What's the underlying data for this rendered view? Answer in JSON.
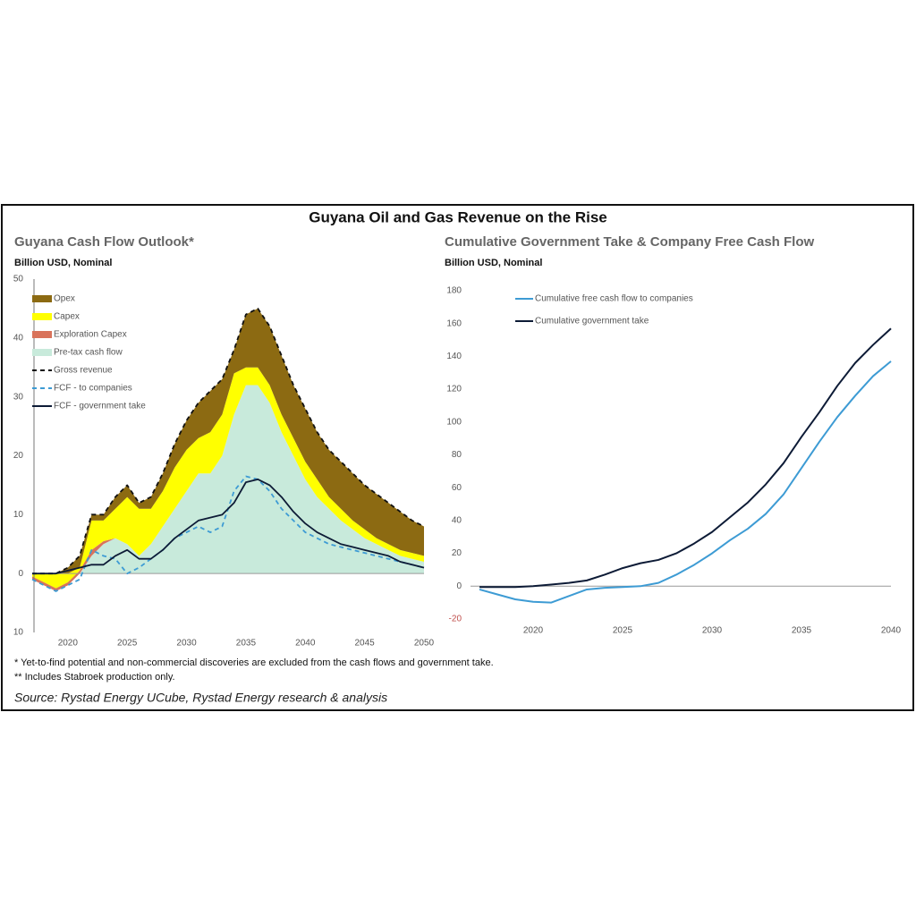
{
  "title": "Guyana Oil and Gas Revenue on the Rise",
  "chart_data": [
    {
      "type": "area",
      "title": "Guyana Cash Flow Outlook*",
      "subtitle": "Billion USD, Nominal",
      "x": [
        2017,
        2018,
        2019,
        2020,
        2021,
        2022,
        2023,
        2024,
        2025,
        2026,
        2027,
        2028,
        2029,
        2030,
        2031,
        2032,
        2033,
        2034,
        2035,
        2036,
        2037,
        2038,
        2039,
        2040,
        2041,
        2042,
        2043,
        2044,
        2045,
        2046,
        2047,
        2048,
        2049,
        2050
      ],
      "xlim": [
        2017,
        2050
      ],
      "xticks": [
        2020,
        2025,
        2030,
        2035,
        2040,
        2045,
        2050
      ],
      "ylim": [
        -10,
        50
      ],
      "yticks": [
        {
          "value": -10,
          "label": "10"
        },
        0,
        10,
        20,
        30,
        40,
        50
      ],
      "y_axis_line": true,
      "legend": "top-left",
      "series": [
        {
          "name": "Pre-tax cash flow",
          "kind": "stacked-area",
          "color": "#c8eadb",
          "values": [
            -1,
            -2,
            -3,
            -2,
            0,
            3,
            5,
            6,
            5,
            3,
            5,
            8,
            11,
            14,
            17,
            17,
            20,
            27,
            32,
            32,
            29,
            24,
            20,
            16,
            13,
            11,
            9,
            7.5,
            6,
            5,
            4,
            3,
            2.5,
            2
          ]
        },
        {
          "name": "Exploration Capex",
          "kind": "stacked-area",
          "color": "#d9735b",
          "values": [
            0.5,
            0.5,
            0.5,
            0.5,
            0.5,
            1,
            0.5,
            0,
            0,
            0,
            0,
            0,
            0,
            0,
            0,
            0,
            0,
            0,
            0,
            0,
            0,
            0,
            0,
            0,
            0,
            0,
            0,
            0,
            0,
            0,
            0,
            0,
            0,
            0
          ]
        },
        {
          "name": "Capex",
          "kind": "stacked-area",
          "color": "#ffff00",
          "values": [
            0.5,
            1.5,
            2.5,
            1.5,
            0.5,
            5,
            3.5,
            5,
            8,
            8,
            6,
            6,
            7,
            7,
            6,
            7,
            7,
            7,
            3,
            3,
            3,
            3,
            3,
            3,
            3,
            2,
            2,
            1.5,
            1.5,
            1,
            1,
            1,
            1,
            1
          ]
        },
        {
          "name": "Opex",
          "kind": "stacked-area",
          "color": "#8c6a12",
          "values": [
            0,
            0,
            0,
            1,
            2,
            1,
            1,
            2,
            2,
            1,
            2,
            3,
            4,
            5,
            6,
            7,
            6,
            4,
            9,
            10,
            10,
            10,
            9,
            9,
            8,
            8,
            8,
            8,
            7.5,
            7.5,
            7,
            6.5,
            5.5,
            5
          ]
        },
        {
          "name": "Gross revenue",
          "kind": "line",
          "dash": true,
          "color": "#111111",
          "values": [
            0,
            0,
            0,
            1,
            3,
            10,
            10,
            13,
            15,
            12,
            13,
            17,
            22,
            26,
            29,
            31,
            33,
            38,
            44,
            45,
            42,
            37,
            32,
            28,
            24,
            21,
            19,
            17,
            15,
            13.5,
            12,
            10.5,
            9,
            8
          ]
        },
        {
          "name": "FCF - to companies",
          "kind": "line",
          "dash": true,
          "color": "#3d9bd4",
          "values": [
            -1,
            -2,
            -3,
            -2,
            -1,
            4,
            3,
            2.5,
            0,
            1,
            2.5,
            4,
            6,
            7,
            8,
            7,
            8,
            14,
            16.5,
            16,
            14,
            11,
            9,
            7,
            6,
            5,
            4.5,
            4,
            3.5,
            3,
            2.5,
            2,
            1.5,
            1
          ]
        },
        {
          "name": "FCF - government take",
          "kind": "line",
          "dash": false,
          "color": "#0d1b36",
          "values": [
            0,
            0,
            0,
            0.5,
            1,
            1.5,
            1.5,
            3,
            4,
            2.5,
            2.5,
            4,
            6,
            7.5,
            9,
            9.5,
            10,
            12,
            15.5,
            16,
            15,
            13,
            10.5,
            8.5,
            7,
            6,
            5,
            4.5,
            4,
            3.5,
            3,
            2,
            1.5,
            1
          ]
        }
      ]
    },
    {
      "type": "line",
      "title": "Cumulative Government Take & Company Free Cash Flow",
      "subtitle": "Billion USD, Nominal",
      "x": [
        2017,
        2018,
        2019,
        2020,
        2021,
        2022,
        2023,
        2024,
        2025,
        2026,
        2027,
        2028,
        2029,
        2030,
        2031,
        2032,
        2033,
        2034,
        2035,
        2036,
        2037,
        2038,
        2039,
        2040
      ],
      "xlim": [
        2016.5,
        2040
      ],
      "xticks": [
        2020,
        2025,
        2030,
        2035,
        2040
      ],
      "ylim": [
        -20,
        180
      ],
      "yticks": [
        -20,
        0,
        20,
        40,
        60,
        80,
        100,
        120,
        140,
        160,
        180
      ],
      "y_axis_line": false,
      "legend": "top-left",
      "series": [
        {
          "name": "Cumulative free cash flow to companies",
          "kind": "line",
          "dash": false,
          "color": "#3d9bd4",
          "values": [
            -2,
            -5,
            -8,
            -9.5,
            -10,
            -6,
            -2,
            -1,
            -0.5,
            0,
            2,
            7,
            13,
            20,
            28,
            35,
            44,
            56,
            72,
            88,
            103,
            116,
            128,
            137
          ]
        },
        {
          "name": "Cumulative government take",
          "kind": "line",
          "dash": false,
          "color": "#0d1b36",
          "values": [
            -0.5,
            -0.5,
            -0.5,
            0,
            1,
            2,
            3.5,
            7,
            11,
            14,
            16,
            20,
            26,
            33,
            42,
            51,
            62,
            75,
            91,
            106,
            122,
            136,
            147,
            157
          ]
        }
      ]
    }
  ],
  "footnotes": [
    "* Yet-to-find potential and non-commercial discoveries are excluded from the cash flows and government take.",
    "** Includes Stabroek production only."
  ],
  "source": "Source: Rystad Energy UCube, Rystad Energy research & analysis"
}
